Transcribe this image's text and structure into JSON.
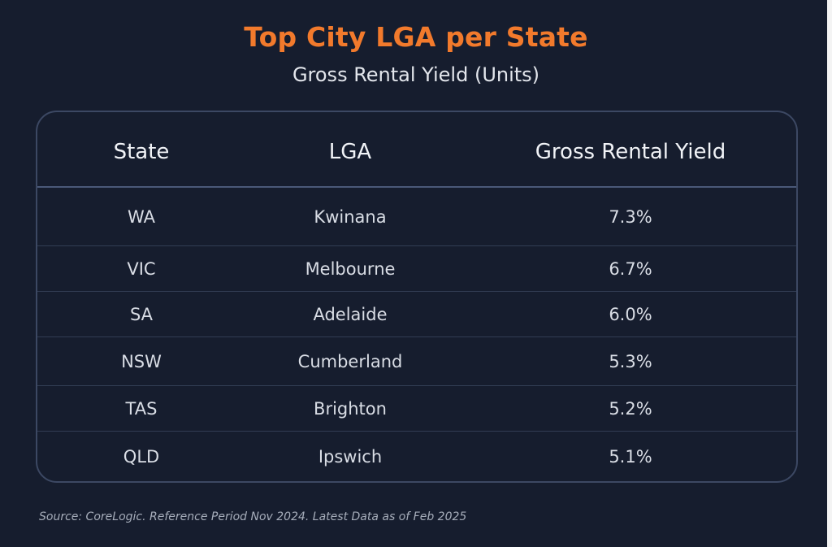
{
  "chart_data": {
    "type": "table",
    "title": "Top City LGA per State",
    "subtitle": "Gross Rental Yield (Units)",
    "columns": [
      "State",
      "LGA",
      "Gross Rental Yield"
    ],
    "rows": [
      [
        "WA",
        "Kwinana",
        "7.3%"
      ],
      [
        "VIC",
        "Melbourne",
        "6.7%"
      ],
      [
        "SA",
        "Adelaide",
        "6.0%"
      ],
      [
        "NSW",
        "Cumberland",
        "5.3%"
      ],
      [
        "TAS",
        "Brighton",
        "5.2%"
      ],
      [
        "QLD",
        "Ipswich",
        "5.1%"
      ]
    ],
    "values": [
      7.3,
      6.7,
      6.0,
      5.3,
      5.2,
      5.1
    ],
    "source": "Source: CoreLogic. Reference Period Nov 2024. Latest Data as of Feb 2025"
  },
  "colors": {
    "background": "#161d2e",
    "title": "#f27a2c",
    "border": "#3c4863"
  }
}
